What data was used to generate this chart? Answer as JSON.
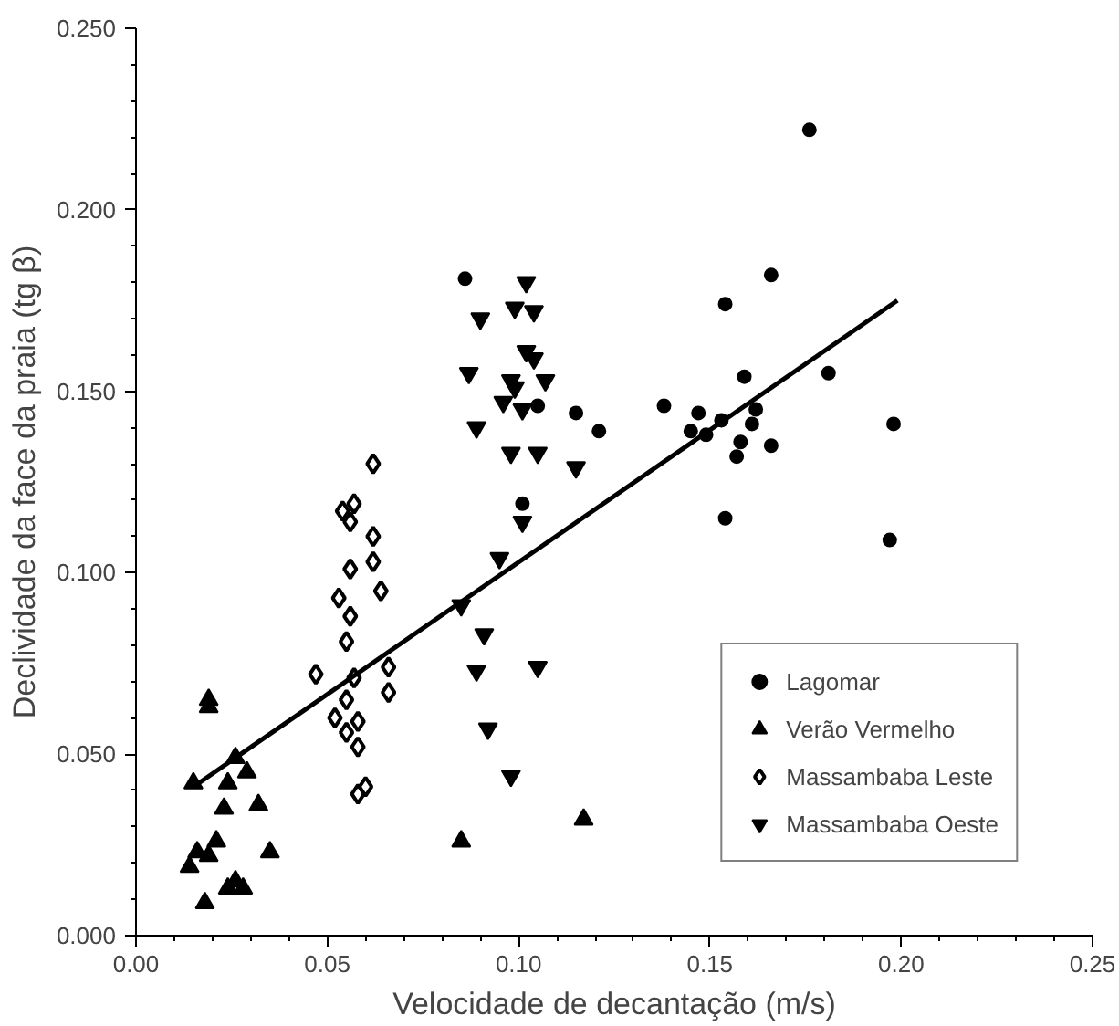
{
  "chart_data": {
    "type": "scatter",
    "xlabel": "Velocidade de decantação (m/s)",
    "ylabel": "Declividade da face da praia (tg β)",
    "xlim": [
      0,
      0.25
    ],
    "ylim": [
      0,
      0.25
    ],
    "xticks": [
      {
        "value": 0,
        "label": "0.00"
      },
      {
        "value": 0.05,
        "label": "0.05"
      },
      {
        "value": 0.1,
        "label": "0.10"
      },
      {
        "value": 0.15,
        "label": "0.15"
      },
      {
        "value": 0.2,
        "label": "0.20"
      },
      {
        "value": 0.25,
        "label": "0.25"
      }
    ],
    "yticks": [
      {
        "value": 0,
        "label": "0.000"
      },
      {
        "value": 0.05,
        "label": "0.050"
      },
      {
        "value": 0.1,
        "label": "0.100"
      },
      {
        "value": 0.15,
        "label": "0.150"
      },
      {
        "value": 0.2,
        "label": "0.200"
      },
      {
        "value": 0.25,
        "label": "0.250"
      }
    ],
    "grid": false,
    "legend": "bottom right",
    "series": [
      {
        "name": "Lagomar",
        "color": "#000000",
        "marker": "circle",
        "x": [
          0.086,
          0.115,
          0.121,
          0.138,
          0.101,
          0.105,
          0.176,
          0.166,
          0.154,
          0.159,
          0.181,
          0.147,
          0.162,
          0.153,
          0.145,
          0.149,
          0.161,
          0.158,
          0.166,
          0.157,
          0.198,
          0.154,
          0.197
        ],
        "values": [
          0.181,
          0.144,
          0.139,
          0.146,
          0.119,
          0.146,
          0.222,
          0.182,
          0.174,
          0.154,
          0.155,
          0.144,
          0.145,
          0.142,
          0.139,
          0.138,
          0.141,
          0.136,
          0.135,
          0.132,
          0.141,
          0.115,
          0.109
        ]
      },
      {
        "name": "Verão Vermelho",
        "color": "#000000",
        "marker": "triangle",
        "x": [
          0.019,
          0.019,
          0.026,
          0.015,
          0.024,
          0.029,
          0.023,
          0.032,
          0.021,
          0.035,
          0.016,
          0.019,
          0.014,
          0.026,
          0.024,
          0.028,
          0.018,
          0.117,
          0.085
        ],
        "values": [
          0.065,
          0.063,
          0.049,
          0.042,
          0.042,
          0.045,
          0.035,
          0.036,
          0.026,
          0.023,
          0.023,
          0.022,
          0.019,
          0.015,
          0.013,
          0.013,
          0.009,
          0.032,
          0.026
        ]
      },
      {
        "name": "Massambaba Leste",
        "color": "#000000",
        "marker": "diamond_open",
        "x": [
          0.062,
          0.054,
          0.057,
          0.056,
          0.062,
          0.056,
          0.062,
          0.064,
          0.053,
          0.056,
          0.055,
          0.047,
          0.057,
          0.066,
          0.055,
          0.066,
          0.052,
          0.055,
          0.058,
          0.058,
          0.058,
          0.06
        ],
        "values": [
          0.13,
          0.117,
          0.119,
          0.114,
          0.11,
          0.101,
          0.103,
          0.095,
          0.093,
          0.088,
          0.081,
          0.072,
          0.071,
          0.074,
          0.065,
          0.067,
          0.06,
          0.056,
          0.059,
          0.052,
          0.039,
          0.041
        ]
      },
      {
        "name": "Massambaba Oeste",
        "color": "#000000",
        "marker": "triangle",
        "x": [
          0.102,
          0.09,
          0.099,
          0.104,
          0.102,
          0.104,
          0.087,
          0.098,
          0.099,
          0.107,
          0.096,
          0.101,
          0.089,
          0.098,
          0.105,
          0.115,
          0.101,
          0.095,
          0.091,
          0.089,
          0.105,
          0.092,
          0.098,
          0.085
        ],
        "values": [
          0.18,
          0.17,
          0.173,
          0.172,
          0.161,
          0.159,
          0.155,
          0.153,
          0.151,
          0.153,
          0.147,
          0.145,
          0.14,
          0.133,
          0.133,
          0.129,
          0.114,
          0.104,
          0.083,
          0.073,
          0.074,
          0.057,
          0.044,
          0.091
        ]
      },
      {
        "type": "line",
        "color": "#000000",
        "marker": "none",
        "x": [
          0.015,
          0.199
        ],
        "values": [
          0.041,
          0.175
        ]
      }
    ]
  }
}
